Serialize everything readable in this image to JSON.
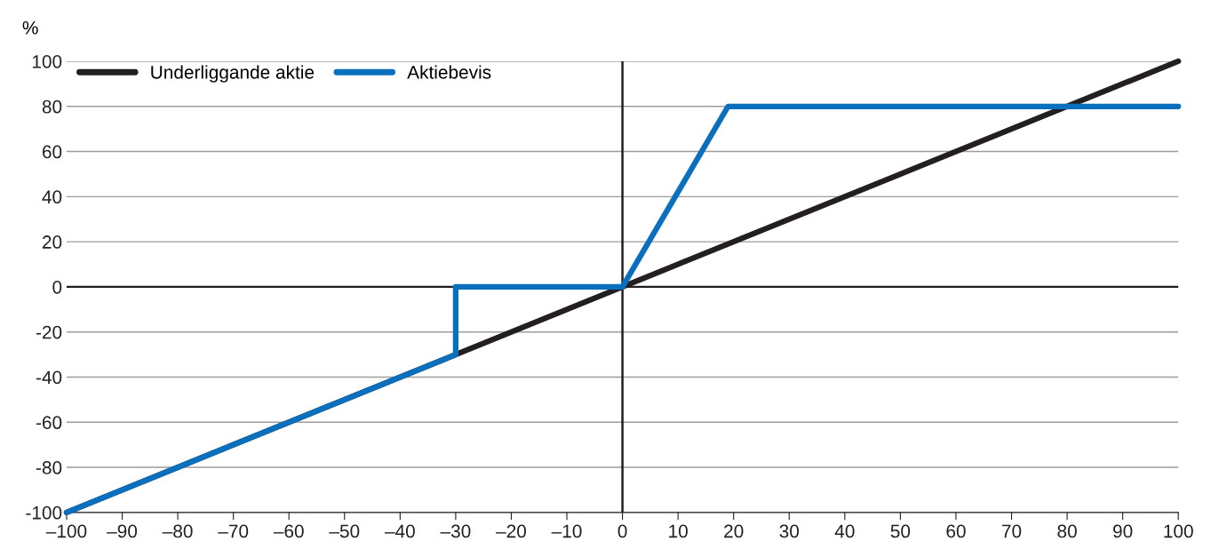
{
  "chart_data": {
    "type": "line",
    "ylabel": "%",
    "series": [
      {
        "name": "Underliggande aktie",
        "color": "#231f20",
        "x": [
          -100,
          100
        ],
        "values": [
          -100,
          100
        ]
      },
      {
        "name": "Aktiebevis",
        "color": "#0a70be",
        "x": [
          -100,
          -30,
          -30,
          0,
          19,
          100
        ],
        "values": [
          -100,
          -30,
          0,
          0,
          80,
          80
        ]
      }
    ],
    "xlim": [
      -100,
      100
    ],
    "ylim": [
      -100,
      100
    ],
    "xticks": [
      {
        "value": -100,
        "label": "–100"
      },
      {
        "value": -90,
        "label": "–90"
      },
      {
        "value": -80,
        "label": "–80"
      },
      {
        "value": -70,
        "label": "–70"
      },
      {
        "value": -60,
        "label": "–60"
      },
      {
        "value": -50,
        "label": "–50"
      },
      {
        "value": -40,
        "label": "–40"
      },
      {
        "value": -30,
        "label": "–30"
      },
      {
        "value": -20,
        "label": "–20"
      },
      {
        "value": -10,
        "label": "–10"
      },
      0,
      10,
      20,
      30,
      40,
      50,
      60,
      70,
      80,
      90,
      100
    ],
    "yticks": [
      {
        "value": -100,
        "label": "-100"
      },
      {
        "value": -80,
        "label": "-80"
      },
      {
        "value": -60,
        "label": "-60"
      },
      {
        "value": -40,
        "label": "-40"
      },
      {
        "value": -20,
        "label": "-20"
      },
      0,
      20,
      40,
      60,
      80,
      100
    ],
    "ref_lines": [
      {
        "axis": "x",
        "value": 0,
        "color": "#231f20"
      }
    ],
    "grid": "y",
    "legend": "top left",
    "marker": "none",
    "line_style": "solid"
  }
}
